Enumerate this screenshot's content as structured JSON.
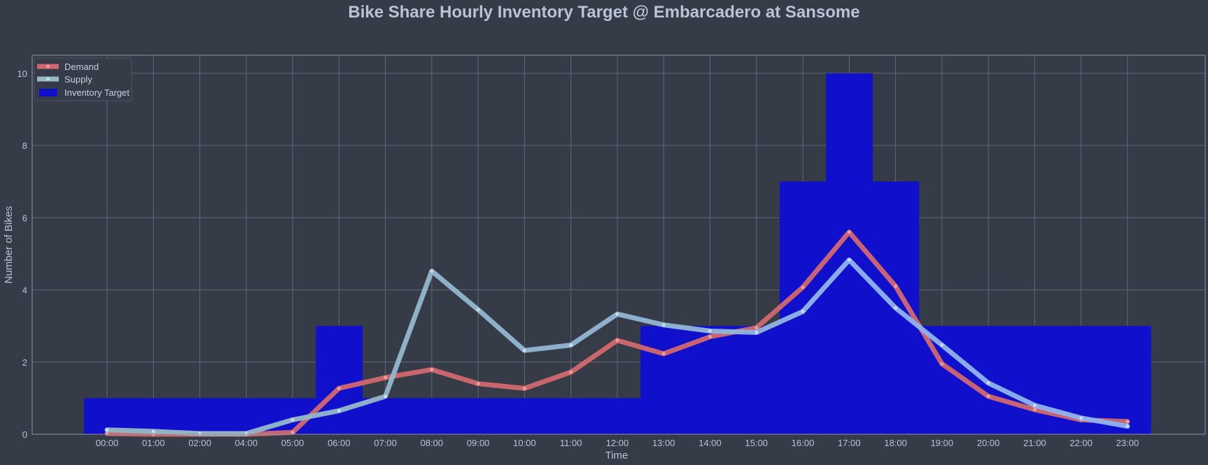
{
  "chart_data": {
    "type": "line",
    "title": "Bike Share Hourly Inventory Target @ Embarcadero at Sansome",
    "xlabel": "Time",
    "ylabel": "Number of Bikes",
    "x_tick_labels": [
      "00:00",
      "01:00",
      "02:00",
      "04:00",
      "05:00",
      "06:00",
      "07:00",
      "08:00",
      "09:00",
      "10:00",
      "11:00",
      "12:00",
      "13:00",
      "14:00",
      "15:00",
      "16:00",
      "17:00",
      "18:00",
      "19:00",
      "20:00",
      "21:00",
      "22:00",
      "23:00"
    ],
    "ylim": [
      0,
      10.5
    ],
    "yticks": [
      0,
      2,
      4,
      6,
      8,
      10
    ],
    "grid": true,
    "legend_position": "top-left",
    "series": [
      {
        "name": "Demand",
        "kind": "line",
        "color": "#d2686e",
        "values": [
          0.02,
          0.0,
          0.0,
          0.0,
          0.05,
          1.27,
          1.57,
          1.79,
          1.4,
          1.27,
          1.72,
          2.6,
          2.23,
          2.7,
          2.95,
          4.07,
          5.6,
          4.1,
          1.95,
          1.05,
          0.68,
          0.4,
          0.35
        ]
      },
      {
        "name": "Supply",
        "kind": "line",
        "color_start": "#95b8c2",
        "color_end": "#8fb3ef",
        "values": [
          0.12,
          0.08,
          0.02,
          0.02,
          0.4,
          0.65,
          1.05,
          4.52,
          3.45,
          2.32,
          2.47,
          3.33,
          3.03,
          2.86,
          2.82,
          3.4,
          4.83,
          3.5,
          2.47,
          1.42,
          0.8,
          0.45,
          0.22
        ]
      },
      {
        "name": "Inventory Target",
        "kind": "bar",
        "color": "#1010cc",
        "values": [
          1,
          1,
          1,
          1,
          1,
          3,
          1,
          1,
          1,
          1,
          1,
          1,
          3,
          3,
          3,
          7,
          10,
          7,
          3,
          3,
          3,
          3,
          3
        ]
      }
    ]
  }
}
